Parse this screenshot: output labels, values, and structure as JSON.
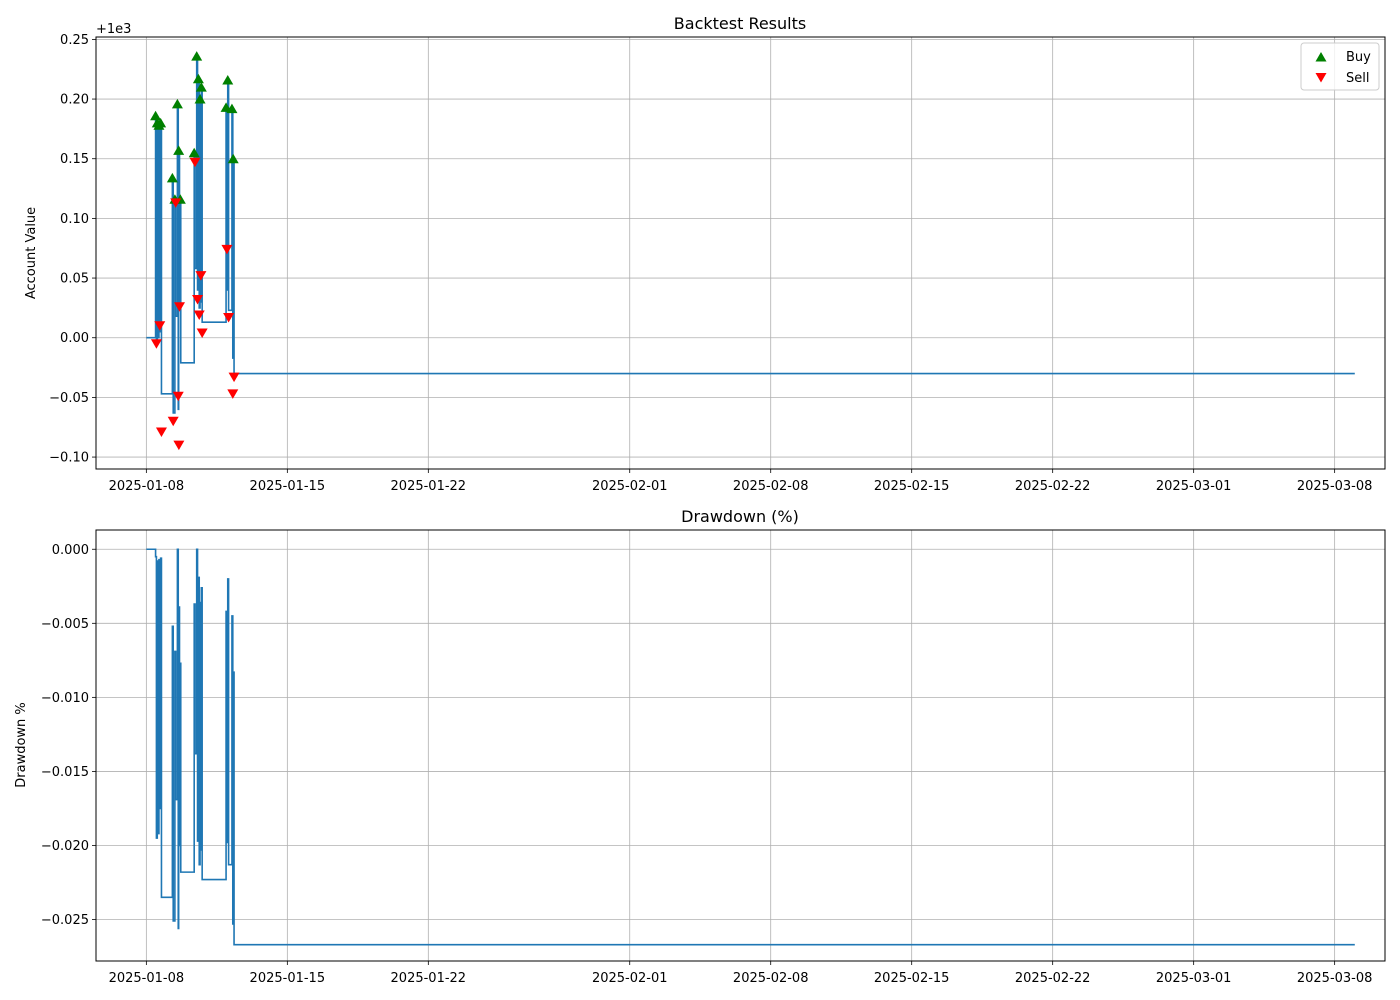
{
  "chart_data": [
    {
      "type": "line",
      "title": "Backtest Results",
      "xlabel": "",
      "ylabel": "Account Value",
      "offset_label": "+1e3",
      "ylim": [
        -0.11,
        0.252
      ],
      "yticks": [
        -0.1,
        -0.05,
        0.0,
        0.05,
        0.1,
        0.15,
        0.2,
        0.25
      ],
      "ytick_labels": [
        "−0.10",
        "−0.05",
        "0.00",
        "0.05",
        "0.10",
        "0.15",
        "0.20",
        "0.25"
      ],
      "xticks": [
        "2025-01-08",
        "2025-01-15",
        "2025-01-22",
        "2025-02-01",
        "2025-02-08",
        "2025-02-15",
        "2025-02-22",
        "2025-03-01",
        "2025-03-08"
      ],
      "xlim": [
        "2025-01-05 12:00",
        "2025-03-10 12:00"
      ],
      "grid": true,
      "legend": {
        "placement": "top-right",
        "entries": [
          "Buy",
          "Sell"
        ]
      },
      "colors": {
        "line": "#1f77b4",
        "buy": "#008000",
        "sell": "#ff0000"
      },
      "series": [
        {
          "name": "",
          "points": [
            [
              "2025-01-08 00:00",
              0.0
            ],
            [
              "2025-01-08 11:00",
              0.0
            ],
            [
              "2025-01-08 11:00",
              0.186
            ],
            [
              "2025-01-08 12:00",
              0.186
            ],
            [
              "2025-01-08 12:00",
              -0.005
            ],
            [
              "2025-01-08 13:00",
              -0.005
            ],
            [
              "2025-01-08 13:00",
              0.18
            ],
            [
              "2025-01-08 14:00",
              0.18
            ],
            [
              "2025-01-08 14:00",
              0.0
            ],
            [
              "2025-01-08 15:00",
              0.0
            ],
            [
              "2025-01-08 15:00",
              0.178
            ],
            [
              "2025-01-08 16:00",
              0.178
            ],
            [
              "2025-01-08 16:00",
              0.005
            ],
            [
              "2025-01-08 17:00",
              0.005
            ],
            [
              "2025-01-08 17:00",
              0.18
            ],
            [
              "2025-01-08 18:00",
              0.18
            ],
            [
              "2025-01-08 18:00",
              -0.047
            ],
            [
              "2025-01-09 07:00",
              -0.047
            ],
            [
              "2025-01-09 07:00",
              0.134
            ],
            [
              "2025-01-09 08:00",
              0.134
            ],
            [
              "2025-01-09 08:00",
              -0.063
            ],
            [
              "2025-01-09 10:00",
              -0.063
            ],
            [
              "2025-01-09 10:00",
              0.116
            ],
            [
              "2025-01-09 11:00",
              0.116
            ],
            [
              "2025-01-09 11:00",
              0.018
            ],
            [
              "2025-01-09 13:00",
              0.018
            ],
            [
              "2025-01-09 13:00",
              0.196
            ],
            [
              "2025-01-09 14:00",
              0.196
            ],
            [
              "2025-01-09 14:00",
              -0.06
            ],
            [
              "2025-01-09 14:30",
              -0.06
            ],
            [
              "2025-01-09 14:30",
              0.157
            ],
            [
              "2025-01-09 15:30",
              0.157
            ],
            [
              "2025-01-09 15:30",
              0.03
            ],
            [
              "2025-01-09 16:30",
              0.03
            ],
            [
              "2025-01-09 16:30",
              0.116
            ],
            [
              "2025-01-09 17:00",
              0.116
            ],
            [
              "2025-01-09 17:00",
              -0.021
            ],
            [
              "2025-01-10 09:00",
              -0.021
            ],
            [
              "2025-01-10 09:00",
              0.155
            ],
            [
              "2025-01-10 10:00",
              0.155
            ],
            [
              "2025-01-10 10:00",
              0.058
            ],
            [
              "2025-01-10 12:00",
              0.058
            ],
            [
              "2025-01-10 12:00",
              0.236
            ],
            [
              "2025-01-10 13:00",
              0.236
            ],
            [
              "2025-01-10 13:00",
              0.04
            ],
            [
              "2025-01-10 14:00",
              0.04
            ],
            [
              "2025-01-10 14:00",
              0.217
            ],
            [
              "2025-01-10 15:00",
              0.217
            ],
            [
              "2025-01-10 15:00",
              0.025
            ],
            [
              "2025-01-10 16:00",
              0.025
            ],
            [
              "2025-01-10 16:00",
              0.2
            ],
            [
              "2025-01-10 17:00",
              0.2
            ],
            [
              "2025-01-10 17:00",
              0.03
            ],
            [
              "2025-01-10 17:30",
              0.03
            ],
            [
              "2025-01-10 17:30",
              0.21
            ],
            [
              "2025-01-10 18:30",
              0.21
            ],
            [
              "2025-01-10 18:30",
              0.013
            ],
            [
              "2025-01-11 23:00",
              0.013
            ],
            [
              "2025-01-11 23:00",
              0.193
            ],
            [
              "2025-01-12 00:00",
              0.193
            ],
            [
              "2025-01-12 00:00",
              0.04
            ],
            [
              "2025-01-12 01:00",
              0.04
            ],
            [
              "2025-01-12 01:00",
              0.216
            ],
            [
              "2025-01-12 02:00",
              0.216
            ],
            [
              "2025-01-12 02:00",
              0.023
            ],
            [
              "2025-01-12 06:00",
              0.023
            ],
            [
              "2025-01-12 06:00",
              0.192
            ],
            [
              "2025-01-12 07:00",
              0.192
            ],
            [
              "2025-01-12 07:00",
              -0.017
            ],
            [
              "2025-01-12 07:30",
              -0.017
            ],
            [
              "2025-01-12 07:30",
              0.15
            ],
            [
              "2025-01-12 08:30",
              0.15
            ],
            [
              "2025-01-12 08:30",
              -0.03
            ],
            [
              "2025-03-09 00:00",
              -0.03
            ]
          ]
        }
      ],
      "buy_markers": [
        [
          "2025-01-08 11:00",
          0.186
        ],
        [
          "2025-01-08 13:00",
          0.18
        ],
        [
          "2025-01-08 15:00",
          0.178
        ],
        [
          "2025-01-08 17:00",
          0.18
        ],
        [
          "2025-01-09 07:00",
          0.134
        ],
        [
          "2025-01-09 10:00",
          0.116
        ],
        [
          "2025-01-09 13:00",
          0.196
        ],
        [
          "2025-01-09 14:30",
          0.157
        ],
        [
          "2025-01-09 16:30",
          0.116
        ],
        [
          "2025-01-10 09:00",
          0.155
        ],
        [
          "2025-01-10 12:00",
          0.236
        ],
        [
          "2025-01-10 14:00",
          0.217
        ],
        [
          "2025-01-10 16:00",
          0.2
        ],
        [
          "2025-01-10 17:30",
          0.21
        ],
        [
          "2025-01-11 23:00",
          0.193
        ],
        [
          "2025-01-12 01:00",
          0.216
        ],
        [
          "2025-01-12 06:00",
          0.192
        ],
        [
          "2025-01-12 07:30",
          0.15
        ]
      ],
      "sell_markers": [
        [
          "2025-01-08 12:00",
          -0.005
        ],
        [
          "2025-01-08 16:00",
          0.01
        ],
        [
          "2025-01-08 18:00",
          -0.079
        ],
        [
          "2025-01-09 08:00",
          -0.07
        ],
        [
          "2025-01-09 11:00",
          0.113
        ],
        [
          "2025-01-09 14:00",
          -0.049
        ],
        [
          "2025-01-09 15:30",
          0.026
        ],
        [
          "2025-01-09 14:45",
          -0.09
        ],
        [
          "2025-01-10 10:00",
          0.147
        ],
        [
          "2025-01-10 13:00",
          0.032
        ],
        [
          "2025-01-10 15:00",
          0.019
        ],
        [
          "2025-01-10 17:00",
          0.052
        ],
        [
          "2025-01-10 18:30",
          0.004
        ],
        [
          "2025-01-12 00:00",
          0.074
        ],
        [
          "2025-01-12 02:00",
          0.017
        ],
        [
          "2025-01-12 07:00",
          -0.047
        ],
        [
          "2025-01-12 08:30",
          -0.033
        ]
      ]
    },
    {
      "type": "line",
      "title": "Drawdown (%)",
      "xlabel": "",
      "ylabel": "Drawdown %",
      "ylim": [
        -0.0278,
        0.0013
      ],
      "yticks": [
        -0.025,
        -0.02,
        -0.015,
        -0.01,
        -0.005,
        0.0
      ],
      "ytick_labels": [
        "−0.025",
        "−0.020",
        "−0.015",
        "−0.010",
        "−0.005",
        "0.000"
      ],
      "xticks": [
        "2025-01-08",
        "2025-01-15",
        "2025-01-22",
        "2025-02-01",
        "2025-02-08",
        "2025-02-15",
        "2025-02-22",
        "2025-03-01",
        "2025-03-08"
      ],
      "xlim": [
        "2025-01-05 12:00",
        "2025-03-10 12:00"
      ],
      "grid": true,
      "colors": {
        "line": "#1f77b4"
      },
      "series": [
        {
          "name": "",
          "points": [
            [
              "2025-01-08 00:00",
              0.0
            ],
            [
              "2025-01-08 11:00",
              0.0
            ],
            [
              "2025-01-08 11:00",
              -0.0005
            ],
            [
              "2025-01-08 12:00",
              -0.0005
            ],
            [
              "2025-01-08 12:00",
              -0.0195
            ],
            [
              "2025-01-08 13:00",
              -0.0195
            ],
            [
              "2025-01-08 13:00",
              -0.0008
            ],
            [
              "2025-01-08 14:00",
              -0.0008
            ],
            [
              "2025-01-08 14:00",
              -0.0192
            ],
            [
              "2025-01-08 15:00",
              -0.0192
            ],
            [
              "2025-01-08 15:00",
              -0.0007
            ],
            [
              "2025-01-08 16:00",
              -0.0007
            ],
            [
              "2025-01-08 16:00",
              -0.0175
            ],
            [
              "2025-01-08 17:00",
              -0.0175
            ],
            [
              "2025-01-08 17:00",
              -0.0006
            ],
            [
              "2025-01-08 18:00",
              -0.0006
            ],
            [
              "2025-01-08 18:00",
              -0.0235
            ],
            [
              "2025-01-09 07:00",
              -0.0235
            ],
            [
              "2025-01-09 07:00",
              -0.0052
            ],
            [
              "2025-01-09 08:00",
              -0.0052
            ],
            [
              "2025-01-09 08:00",
              -0.0251
            ],
            [
              "2025-01-09 10:00",
              -0.0251
            ],
            [
              "2025-01-09 10:00",
              -0.0069
            ],
            [
              "2025-01-09 11:00",
              -0.0069
            ],
            [
              "2025-01-09 11:00",
              -0.0169
            ],
            [
              "2025-01-09 13:00",
              -0.0169
            ],
            [
              "2025-01-09 13:00",
              0.0
            ],
            [
              "2025-01-09 14:00",
              0.0
            ],
            [
              "2025-01-09 14:00",
              -0.0256
            ],
            [
              "2025-01-09 14:30",
              -0.0256
            ],
            [
              "2025-01-09 14:30",
              -0.0039
            ],
            [
              "2025-01-09 15:30",
              -0.0039
            ],
            [
              "2025-01-09 15:30",
              -0.02
            ],
            [
              "2025-01-09 16:30",
              -0.02
            ],
            [
              "2025-01-09 16:30",
              -0.0077
            ],
            [
              "2025-01-09 17:00",
              -0.0077
            ],
            [
              "2025-01-09 17:00",
              -0.0218
            ],
            [
              "2025-01-10 09:00",
              -0.0218
            ],
            [
              "2025-01-10 09:00",
              -0.0037
            ],
            [
              "2025-01-10 10:00",
              -0.0037
            ],
            [
              "2025-01-10 10:00",
              -0.0138
            ],
            [
              "2025-01-10 12:00",
              -0.0138
            ],
            [
              "2025-01-10 12:00",
              0.0
            ],
            [
              "2025-01-10 13:00",
              0.0
            ],
            [
              "2025-01-10 13:00",
              -0.0197
            ],
            [
              "2025-01-10 14:00",
              -0.0197
            ],
            [
              "2025-01-10 14:00",
              -0.0019
            ],
            [
              "2025-01-10 15:00",
              -0.0019
            ],
            [
              "2025-01-10 15:00",
              -0.0213
            ],
            [
              "2025-01-10 16:00",
              -0.0213
            ],
            [
              "2025-01-10 16:00",
              -0.0036
            ],
            [
              "2025-01-10 17:00",
              -0.0036
            ],
            [
              "2025-01-10 17:00",
              -0.0203
            ],
            [
              "2025-01-10 17:30",
              -0.0203
            ],
            [
              "2025-01-10 17:30",
              -0.0026
            ],
            [
              "2025-01-10 18:30",
              -0.0026
            ],
            [
              "2025-01-10 18:30",
              -0.0223
            ],
            [
              "2025-01-11 23:00",
              -0.0223
            ],
            [
              "2025-01-11 23:00",
              -0.0042
            ],
            [
              "2025-01-12 00:00",
              -0.0042
            ],
            [
              "2025-01-12 00:00",
              -0.0198
            ],
            [
              "2025-01-12 01:00",
              -0.0198
            ],
            [
              "2025-01-12 01:00",
              -0.002
            ],
            [
              "2025-01-12 02:00",
              -0.002
            ],
            [
              "2025-01-12 02:00",
              -0.0213
            ],
            [
              "2025-01-12 06:00",
              -0.0213
            ],
            [
              "2025-01-12 06:00",
              -0.0045
            ],
            [
              "2025-01-12 07:00",
              -0.0045
            ],
            [
              "2025-01-12 07:00",
              -0.0253
            ],
            [
              "2025-01-12 07:30",
              -0.0253
            ],
            [
              "2025-01-12 07:30",
              -0.0083
            ],
            [
              "2025-01-12 08:30",
              -0.0083
            ],
            [
              "2025-01-12 08:30",
              -0.0267
            ],
            [
              "2025-03-09 00:00",
              -0.0267
            ]
          ]
        }
      ]
    }
  ]
}
